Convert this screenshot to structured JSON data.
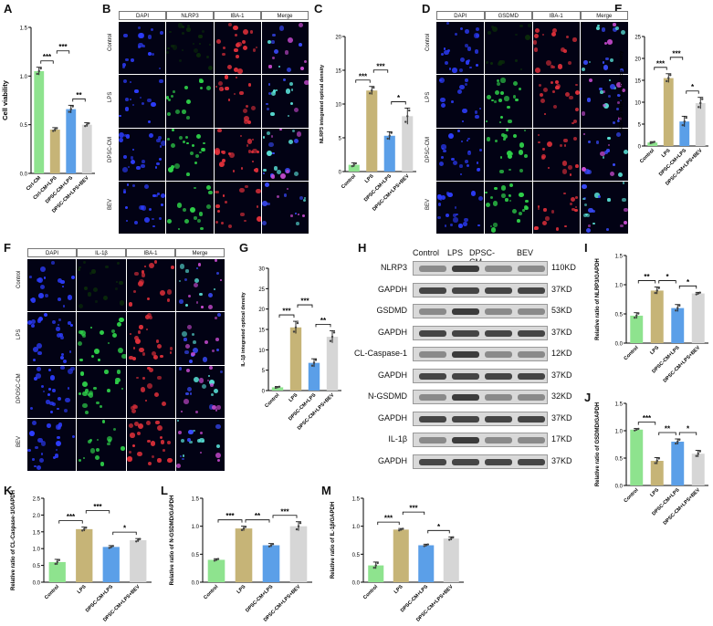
{
  "colors": {
    "green": "#8ee38e",
    "tan": "#c6b477",
    "blue": "#5b9fe8",
    "gray": "#d6d6d6"
  },
  "panels": {
    "A": "A",
    "B": "B",
    "C": "C",
    "D": "D",
    "E": "E",
    "F": "F",
    "G": "G",
    "H": "H",
    "I": "I",
    "J": "J",
    "K": "K",
    "L": "L",
    "M": "M"
  },
  "microscopy": {
    "B": {
      "headers": [
        "DAPI",
        "NLRP3",
        "IBA-1",
        "Merge"
      ],
      "rows": [
        "Control",
        "LPS",
        "DPSC-CM",
        "BEV"
      ]
    },
    "D": {
      "headers": [
        "DAPI",
        "GSDMD",
        "IBA-1",
        "Merge"
      ],
      "rows": [
        "Control",
        "LPS",
        "DPSC-CM",
        "BEV"
      ]
    },
    "F": {
      "headers": [
        "DAPI",
        "IL-1β",
        "IBA-1",
        "Merge"
      ],
      "rows": [
        "Control",
        "LPS",
        "DPOSC-CM",
        "BEV"
      ]
    }
  },
  "western": {
    "columns": [
      "Control",
      "LPS",
      "DPSC-CM",
      "BEV"
    ],
    "rows": [
      {
        "name": "NLRP3",
        "kd": "110KD"
      },
      {
        "name": "GAPDH",
        "kd": "37KD"
      },
      {
        "name": "GSDMD",
        "kd": "53KD"
      },
      {
        "name": "GAPDH",
        "kd": "37KD"
      },
      {
        "name": "CL-Caspase-1",
        "kd": "12KD"
      },
      {
        "name": "GAPDH",
        "kd": "37KD"
      },
      {
        "name": "N-GSDMD",
        "kd": "32KD"
      },
      {
        "name": "GAPDH",
        "kd": "37KD"
      },
      {
        "name": "IL-1β",
        "kd": "17KD"
      },
      {
        "name": "GAPDH",
        "kd": "37KD"
      }
    ]
  },
  "chart_data": [
    {
      "panel": "A",
      "type": "bar",
      "categories": [
        "Ctrl-CM",
        "Ctrl-CM+LPS",
        "DPSC-CM+LPS",
        "DPSC-CM+LPS+BEV"
      ],
      "values": [
        1.05,
        0.45,
        0.66,
        0.5
      ],
      "errors": [
        0.04,
        0.02,
        0.04,
        0.02
      ],
      "ylabel": "Cell viability",
      "ylim": [
        0.0,
        1.5
      ],
      "yticks": [
        "0.0",
        "0.5",
        "1.0",
        "1.5"
      ],
      "sig": [
        {
          "from": 0,
          "to": 1,
          "label": "***",
          "level": 1
        },
        {
          "from": 1,
          "to": 2,
          "label": "***",
          "level": 2
        },
        {
          "from": 2,
          "to": 3,
          "label": "**",
          "level": 1
        }
      ]
    },
    {
      "panel": "C",
      "type": "bar",
      "categories": [
        "Control",
        "LPS",
        "DPSC-CM+LPS",
        "DPSC-CM+LPS+BEV"
      ],
      "values": [
        1.0,
        12.0,
        5.3,
        8.2
      ],
      "errors": [
        0.3,
        0.6,
        0.6,
        1.2
      ],
      "ylabel": "NLRP3 integrated optical density",
      "ylim": [
        0,
        20
      ],
      "yticks": [
        "0",
        "5",
        "10",
        "15",
        "20"
      ],
      "sig": [
        {
          "from": 0,
          "to": 1,
          "label": "***",
          "level": 1
        },
        {
          "from": 1,
          "to": 2,
          "label": "***",
          "level": 2
        },
        {
          "from": 2,
          "to": 3,
          "label": "*",
          "level": 1
        }
      ]
    },
    {
      "panel": "E",
      "type": "bar",
      "categories": [
        "Control",
        "LPS",
        "DPSC-CM+LPS",
        "DPSC-CM+LPS+BEV"
      ],
      "values": [
        0.8,
        15.5,
        5.6,
        9.8
      ],
      "errors": [
        0.2,
        1.0,
        1.2,
        1.3
      ],
      "ylabel": "GSDMD integrated optical density",
      "ylim": [
        0,
        25
      ],
      "yticks": [
        "0",
        "5",
        "10",
        "15",
        "20",
        "25"
      ],
      "sig": [
        {
          "from": 0,
          "to": 1,
          "label": "***",
          "level": 1
        },
        {
          "from": 1,
          "to": 2,
          "label": "***",
          "level": 2
        },
        {
          "from": 2,
          "to": 3,
          "label": "*",
          "level": 1
        }
      ]
    },
    {
      "panel": "G",
      "type": "bar",
      "categories": [
        "Control",
        "LPS",
        "DPSC-CM+LPS",
        "DPSC-CM+LPS+BEV"
      ],
      "values": [
        0.8,
        15.5,
        6.8,
        13.2
      ],
      "errors": [
        0.2,
        1.5,
        1.0,
        1.5
      ],
      "ylabel": "IL-1β integrated optical density",
      "ylim": [
        0,
        30
      ],
      "yticks": [
        "0",
        "5",
        "10",
        "15",
        "20",
        "25",
        "30"
      ],
      "sig": [
        {
          "from": 0,
          "to": 1,
          "label": "***",
          "level": 1
        },
        {
          "from": 1,
          "to": 2,
          "label": "***",
          "level": 2
        },
        {
          "from": 2,
          "to": 3,
          "label": "**",
          "level": 1
        }
      ]
    },
    {
      "panel": "I",
      "type": "bar",
      "categories": [
        "Control",
        "LPS",
        "DPSC-CM+LPS",
        "DPSC-CM+LPS+BEV"
      ],
      "values": [
        0.47,
        0.9,
        0.6,
        0.85
      ],
      "errors": [
        0.05,
        0.06,
        0.06,
        0.02
      ],
      "ylabel": "Relative ratio of NLRP3/GAPDH",
      "ylim": [
        0.0,
        1.5
      ],
      "yticks": [
        "0.0",
        "0.5",
        "1.0",
        "1.5"
      ],
      "sig": [
        {
          "from": 0,
          "to": 1,
          "label": "**",
          "level": 1
        },
        {
          "from": 1,
          "to": 2,
          "label": "*",
          "level": 1
        },
        {
          "from": 2,
          "to": 3,
          "label": "*",
          "level": 1
        }
      ]
    },
    {
      "panel": "J",
      "type": "bar",
      "categories": [
        "Control",
        "LPS",
        "DPSC-CM+LPS",
        "DPSC-CM+LPS+BEV"
      ],
      "values": [
        1.02,
        0.45,
        0.8,
        0.58
      ],
      "errors": [
        0.02,
        0.06,
        0.05,
        0.06
      ],
      "ylabel": "Relative ratio of GSDMD/GAPDH",
      "ylim": [
        0.0,
        1.5
      ],
      "yticks": [
        "0.0",
        "0.5",
        "1.0",
        "1.5"
      ],
      "sig": [
        {
          "from": 0,
          "to": 1,
          "label": "***",
          "level": 1
        },
        {
          "from": 1,
          "to": 2,
          "label": "**",
          "level": 1
        },
        {
          "from": 2,
          "to": 3,
          "label": "*",
          "level": 1
        }
      ]
    },
    {
      "panel": "K",
      "type": "bar",
      "categories": [
        "Control",
        "LPS",
        "DPSC-CM+LPS",
        "DPSC-CM+LPS+BEV"
      ],
      "values": [
        0.6,
        1.58,
        1.05,
        1.25
      ],
      "errors": [
        0.08,
        0.06,
        0.04,
        0.05
      ],
      "ylabel": "Relative ratio of CL-Caspase-1/GAPDH",
      "ylim": [
        0.0,
        2.5
      ],
      "yticks": [
        "0.0",
        "0.5",
        "1.0",
        "1.5",
        "2.0",
        "2.5"
      ],
      "sig": [
        {
          "from": 0,
          "to": 1,
          "label": "***",
          "level": 1
        },
        {
          "from": 1,
          "to": 2,
          "label": "***",
          "level": 2
        },
        {
          "from": 2,
          "to": 3,
          "label": "*",
          "level": 1
        }
      ]
    },
    {
      "panel": "L",
      "type": "bar",
      "categories": [
        "Control",
        "LPS",
        "DPSC-CM+LPS",
        "DPSC-CM+LPS+BEV"
      ],
      "values": [
        0.4,
        0.96,
        0.66,
        1.0
      ],
      "errors": [
        0.02,
        0.04,
        0.03,
        0.08
      ],
      "ylabel": "Relative ratio of N-GSDMD/GAPDH",
      "ylim": [
        0.0,
        1.5
      ],
      "yticks": [
        "0.0",
        "0.5",
        "1.0",
        "1.5"
      ],
      "sig": [
        {
          "from": 0,
          "to": 1,
          "label": "***",
          "level": 1
        },
        {
          "from": 1,
          "to": 2,
          "label": "**",
          "level": 1
        },
        {
          "from": 2,
          "to": 3,
          "label": "***",
          "level": 1
        }
      ]
    },
    {
      "panel": "M",
      "type": "bar",
      "categories": [
        "Control",
        "LPS",
        "DPSC-CM+LPS",
        "DPSC-CM+LPS+BEV"
      ],
      "values": [
        0.3,
        0.94,
        0.66,
        0.78
      ],
      "errors": [
        0.06,
        0.02,
        0.02,
        0.03
      ],
      "ylabel": "Relative ratio of IL-1β/GAPDH",
      "ylim": [
        0.0,
        1.5
      ],
      "yticks": [
        "0.0",
        "0.5",
        "1.0",
        "1.5"
      ],
      "sig": [
        {
          "from": 0,
          "to": 1,
          "label": "***",
          "level": 1
        },
        {
          "from": 1,
          "to": 2,
          "label": "***",
          "level": 2
        },
        {
          "from": 2,
          "to": 3,
          "label": "*",
          "level": 1
        }
      ]
    }
  ]
}
